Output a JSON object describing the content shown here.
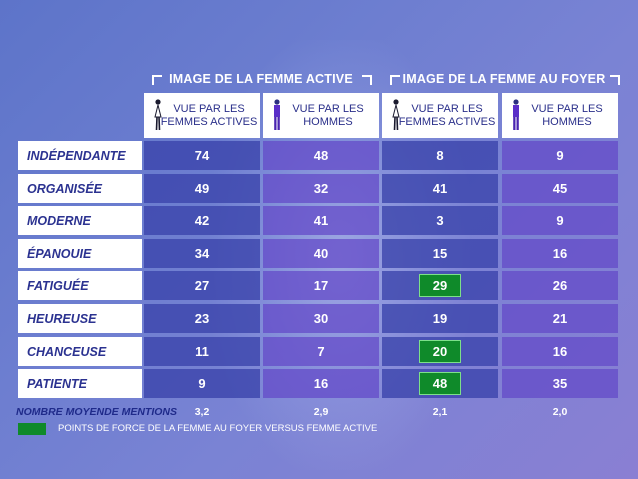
{
  "chart_data": {
    "type": "table",
    "groups": [
      {
        "label": "IMAGE DE LA FEMME ACTIVE"
      },
      {
        "label": "IMAGE DE LA FEMME AU FOYER"
      }
    ],
    "columns": [
      {
        "line1": "VUE PAR LES",
        "line2": "FEMMES ACTIVES",
        "icon": "woman-icon"
      },
      {
        "line1": "VUE PAR LES",
        "line2": "HOMMES",
        "icon": "man-icon"
      },
      {
        "line1": "VUE PAR LES",
        "line2": "FEMMES ACTIVES",
        "icon": "woman-icon"
      },
      {
        "line1": "VUE PAR LES",
        "line2": "HOMMES",
        "icon": "man-icon"
      }
    ],
    "rows": [
      {
        "label": "INDÉPENDANTE",
        "values": [
          "74",
          "48",
          "8",
          "9"
        ],
        "highlight": [
          false,
          false,
          false,
          false
        ]
      },
      {
        "label": "ORGANISÉE",
        "values": [
          "49",
          "32",
          "41",
          "45"
        ],
        "highlight": [
          false,
          false,
          false,
          false
        ]
      },
      {
        "label": "MODERNE",
        "values": [
          "42",
          "41",
          "3",
          "9"
        ],
        "highlight": [
          false,
          false,
          false,
          false
        ]
      },
      {
        "label": "ÉPANOUIE",
        "values": [
          "34",
          "40",
          "15",
          "16"
        ],
        "highlight": [
          false,
          false,
          false,
          false
        ]
      },
      {
        "label": "FATIGUÉE",
        "values": [
          "27",
          "17",
          "29",
          "26"
        ],
        "highlight": [
          false,
          false,
          true,
          false
        ]
      },
      {
        "label": "HEUREUSE",
        "values": [
          "23",
          "30",
          "19",
          "21"
        ],
        "highlight": [
          false,
          false,
          false,
          false
        ]
      },
      {
        "label": "CHANCEUSE",
        "values": [
          "11",
          "7",
          "20",
          "16"
        ],
        "highlight": [
          false,
          false,
          true,
          false
        ]
      },
      {
        "label": "PATIENTE",
        "values": [
          "9",
          "16",
          "48",
          "35"
        ],
        "highlight": [
          false,
          false,
          true,
          false
        ]
      }
    ],
    "average": {
      "label": "NOMBRE MOYENDE MENTIONS",
      "values": [
        "3,2",
        "2,9",
        "2,1",
        "2,0"
      ]
    },
    "legend": {
      "text": "POINTS DE FORCE DE LA FEMME AU FOYER VERSUS FEMME ACTIVE",
      "color": "#0f8a2a"
    }
  }
}
